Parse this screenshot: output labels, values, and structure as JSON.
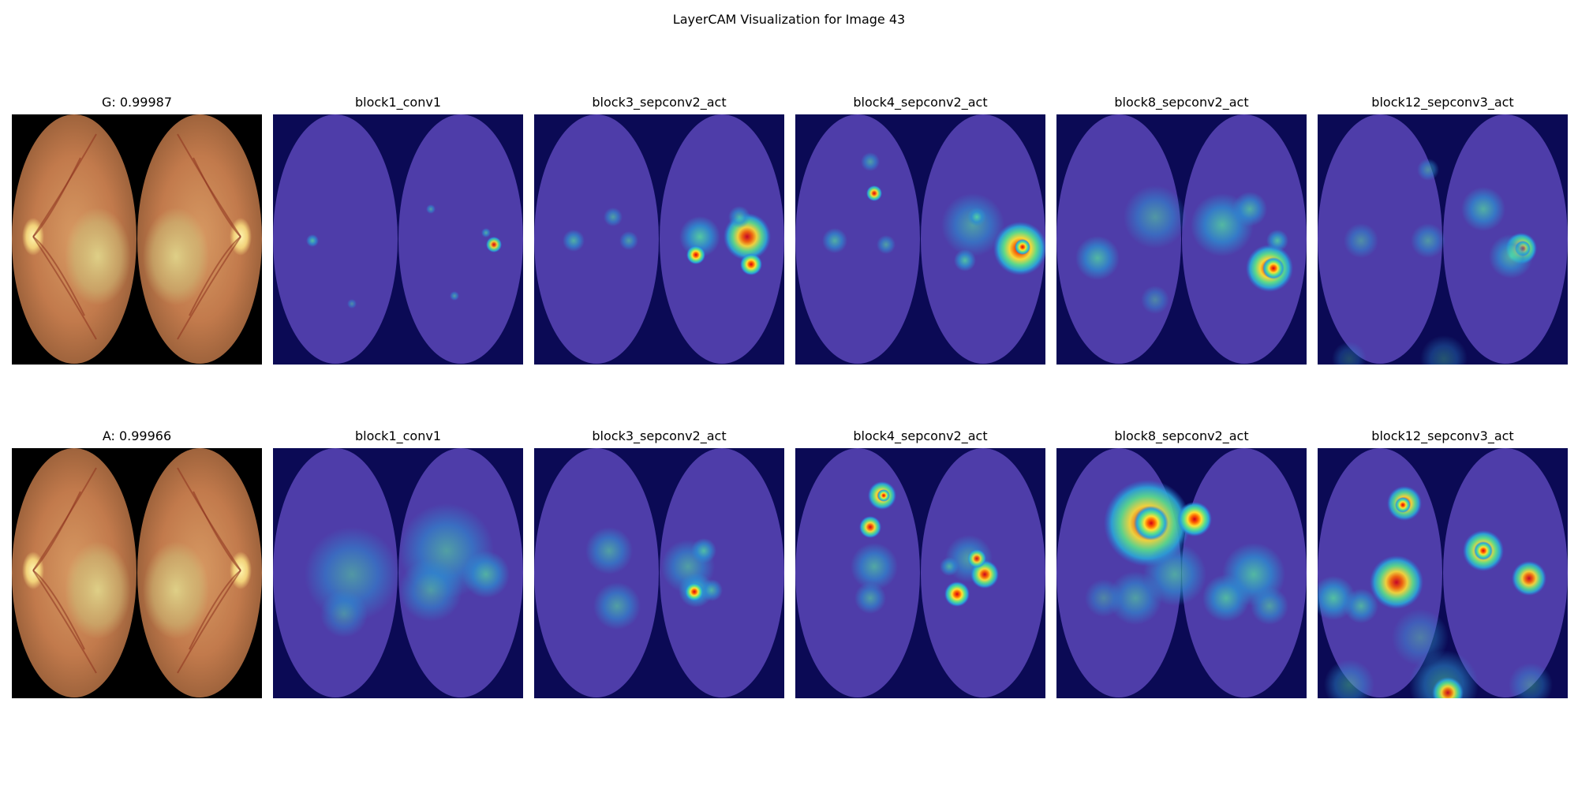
{
  "figure": {
    "title": "LayerCAM Visualization for Image 43"
  },
  "rows": [
    {
      "panels": [
        {
          "title": "G: 0.99987",
          "kind": "original"
        },
        {
          "title": "block1_conv1",
          "kind": "cam",
          "level": 1
        },
        {
          "title": "block3_sepconv2_act",
          "kind": "cam",
          "level": 3
        },
        {
          "title": "block4_sepconv2_act",
          "kind": "cam",
          "level": 4
        },
        {
          "title": "block8_sepconv2_act",
          "kind": "cam",
          "level": 8
        },
        {
          "title": "block12_sepconv3_act",
          "kind": "cam",
          "level": 12
        }
      ]
    },
    {
      "panels": [
        {
          "title": "A: 0.99966",
          "kind": "original"
        },
        {
          "title": "block1_conv1",
          "kind": "cam",
          "level": 1
        },
        {
          "title": "block3_sepconv2_act",
          "kind": "cam",
          "level": 3
        },
        {
          "title": "block4_sepconv2_act",
          "kind": "cam",
          "level": 4
        },
        {
          "title": "block8_sepconv2_act",
          "kind": "cam",
          "level": 8
        },
        {
          "title": "block12_sepconv3_act",
          "kind": "cam",
          "level": 12
        }
      ]
    }
  ]
}
